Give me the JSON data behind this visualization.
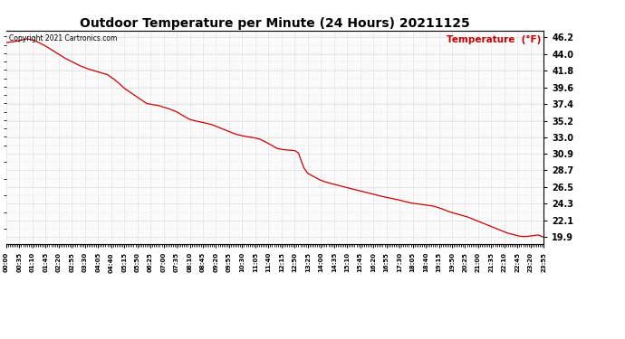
{
  "title": "Outdoor Temperature per Minute (24 Hours) 20211125",
  "copyright_text": "Copyright 2021 Cartronics.com",
  "legend_text": "Temperature  (°F)",
  "line_color": "#cc0000",
  "background_color": "#ffffff",
  "plot_bg_color": "#ffffff",
  "grid_color": "#bbbbbb",
  "yticks": [
    19.9,
    22.1,
    24.3,
    26.5,
    28.7,
    30.9,
    33.0,
    35.2,
    37.4,
    39.6,
    41.8,
    44.0,
    46.2
  ],
  "ymin": 19.0,
  "ymax": 47.1,
  "total_minutes": 1435,
  "x_tick_interval": 35,
  "figwidth": 6.9,
  "figheight": 3.75,
  "key_points": [
    [
      0,
      45.5
    ],
    [
      30,
      45.7
    ],
    [
      55,
      46.0
    ],
    [
      75,
      45.8
    ],
    [
      100,
      45.2
    ],
    [
      130,
      44.3
    ],
    [
      155,
      43.5
    ],
    [
      175,
      43.0
    ],
    [
      195,
      42.5
    ],
    [
      215,
      42.1
    ],
    [
      235,
      41.8
    ],
    [
      255,
      41.5
    ],
    [
      270,
      41.3
    ],
    [
      285,
      40.8
    ],
    [
      300,
      40.2
    ],
    [
      315,
      39.5
    ],
    [
      330,
      39.0
    ],
    [
      345,
      38.5
    ],
    [
      360,
      38.0
    ],
    [
      375,
      37.5
    ],
    [
      390,
      37.35
    ],
    [
      405,
      37.25
    ],
    [
      415,
      37.1
    ],
    [
      425,
      36.95
    ],
    [
      435,
      36.8
    ],
    [
      445,
      36.6
    ],
    [
      455,
      36.4
    ],
    [
      465,
      36.1
    ],
    [
      475,
      35.8
    ],
    [
      490,
      35.4
    ],
    [
      505,
      35.2
    ],
    [
      520,
      35.05
    ],
    [
      535,
      34.9
    ],
    [
      550,
      34.7
    ],
    [
      565,
      34.4
    ],
    [
      580,
      34.1
    ],
    [
      595,
      33.8
    ],
    [
      610,
      33.5
    ],
    [
      625,
      33.3
    ],
    [
      640,
      33.15
    ],
    [
      655,
      33.05
    ],
    [
      665,
      32.95
    ],
    [
      675,
      32.85
    ],
    [
      690,
      32.5
    ],
    [
      705,
      32.1
    ],
    [
      715,
      31.8
    ],
    [
      725,
      31.55
    ],
    [
      740,
      31.42
    ],
    [
      750,
      31.38
    ],
    [
      760,
      31.35
    ],
    [
      770,
      31.3
    ],
    [
      780,
      31.0
    ],
    [
      787,
      30.0
    ],
    [
      795,
      29.0
    ],
    [
      805,
      28.3
    ],
    [
      820,
      27.9
    ],
    [
      835,
      27.5
    ],
    [
      850,
      27.2
    ],
    [
      865,
      27.0
    ],
    [
      880,
      26.8
    ],
    [
      900,
      26.55
    ],
    [
      920,
      26.3
    ],
    [
      940,
      26.05
    ],
    [
      960,
      25.8
    ],
    [
      980,
      25.55
    ],
    [
      1000,
      25.3
    ],
    [
      1020,
      25.1
    ],
    [
      1040,
      24.9
    ],
    [
      1060,
      24.65
    ],
    [
      1075,
      24.45
    ],
    [
      1090,
      24.35
    ],
    [
      1105,
      24.25
    ],
    [
      1120,
      24.15
    ],
    [
      1140,
      24.0
    ],
    [
      1160,
      23.7
    ],
    [
      1180,
      23.3
    ],
    [
      1200,
      23.0
    ],
    [
      1215,
      22.8
    ],
    [
      1230,
      22.6
    ],
    [
      1245,
      22.3
    ],
    [
      1260,
      22.0
    ],
    [
      1275,
      21.7
    ],
    [
      1290,
      21.4
    ],
    [
      1305,
      21.1
    ],
    [
      1320,
      20.8
    ],
    [
      1335,
      20.5
    ],
    [
      1350,
      20.3
    ],
    [
      1365,
      20.1
    ],
    [
      1375,
      20.0
    ],
    [
      1390,
      20.0
    ],
    [
      1405,
      20.1
    ],
    [
      1420,
      20.2
    ],
    [
      1435,
      19.9
    ]
  ]
}
